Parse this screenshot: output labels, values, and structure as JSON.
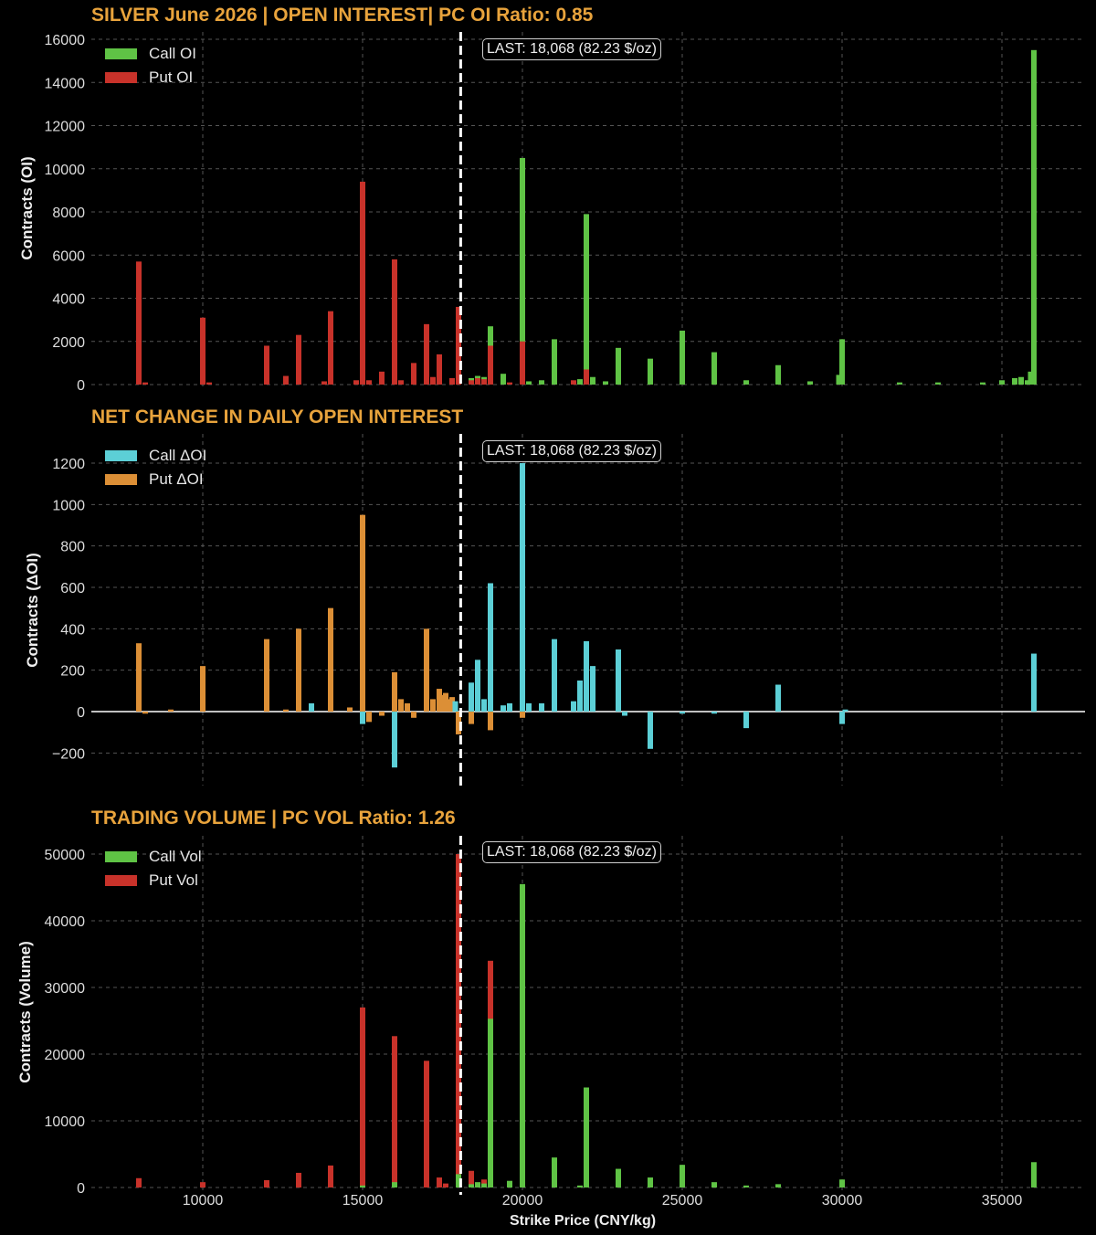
{
  "colors": {
    "background": "#000000",
    "title": "#e8a33c",
    "call_oi": "#5fc345",
    "put_oi": "#c8322a",
    "call_doi": "#5ccfd6",
    "put_doi": "#dc8f36",
    "call_vol": "#5fc345",
    "put_vol": "#c8322a",
    "last_line": "#ffffff",
    "grid": "#555555"
  },
  "last_label": "LAST: 18,068 (82.23 $/oz)",
  "last_strike": 18068,
  "xaxis": {
    "label": "Strike Price (CNY/kg)",
    "ticks": [
      10000,
      15000,
      20000,
      25000,
      30000,
      35000
    ],
    "tick_labels": [
      "10000",
      "15000",
      "20000",
      "25000",
      "30000",
      "35000"
    ],
    "range": [
      7000,
      37000
    ]
  },
  "panels": [
    {
      "id": "oi",
      "title": "SILVER June 2026 | OPEN INTEREST|  PC OI Ratio: 0.85",
      "ylabel": "Contracts (OI)",
      "yticks": [
        0,
        2000,
        4000,
        6000,
        8000,
        10000,
        12000,
        14000,
        16000
      ],
      "ytick_labels": [
        "0",
        "2000",
        "4000",
        "6000",
        "8000",
        "10000",
        "12000",
        "14000",
        "16000"
      ],
      "legend": [
        {
          "label": "Call OI",
          "color": "#5fc345"
        },
        {
          "label": "Put OI",
          "color": "#c8322a"
        }
      ]
    },
    {
      "id": "doi",
      "title": "NET CHANGE IN DAILY OPEN INTEREST",
      "ylabel": "Contracts (ΔOI)",
      "yticks": [
        -200,
        0,
        200,
        400,
        600,
        800,
        1000,
        1200
      ],
      "ytick_labels": [
        "−200",
        "0",
        "200",
        "400",
        "600",
        "800",
        "1000",
        "1200"
      ],
      "legend": [
        {
          "label": "Call ΔOI",
          "color": "#5ccfd6"
        },
        {
          "label": "Put ΔOI",
          "color": "#dc8f36"
        }
      ]
    },
    {
      "id": "vol",
      "title": "TRADING VOLUME | PC VOL Ratio: 1.26",
      "ylabel": "Contracts (Volume)",
      "yticks": [
        0,
        10000,
        20000,
        30000,
        40000,
        50000
      ],
      "ytick_labels": [
        "0",
        "10000",
        "20000",
        "30000",
        "40000",
        "50000"
      ],
      "legend": [
        {
          "label": "Call Vol",
          "color": "#5fc345"
        },
        {
          "label": "Put Vol",
          "color": "#c8322a"
        }
      ]
    }
  ],
  "chart_data": [
    {
      "type": "bar",
      "title": "SILVER June 2026 | OPEN INTEREST|  PC OI Ratio: 0.85",
      "xlabel": "Strike Price (CNY/kg)",
      "ylabel": "Contracts (OI)",
      "ylim": [
        0,
        16000
      ],
      "grid": true,
      "legend_position": "upper left",
      "annotations": [
        "LAST: 18,068 (82.23 $/oz)"
      ],
      "series": [
        {
          "name": "Call OI",
          "points": [
            [
              18400,
              300
            ],
            [
              18600,
              400
            ],
            [
              18800,
              350
            ],
            [
              19000,
              2700
            ],
            [
              19400,
              500
            ],
            [
              20000,
              10500
            ],
            [
              20200,
              150
            ],
            [
              20600,
              200
            ],
            [
              21000,
              2100
            ],
            [
              21800,
              250
            ],
            [
              22000,
              7900
            ],
            [
              22200,
              350
            ],
            [
              22600,
              150
            ],
            [
              23000,
              1700
            ],
            [
              24000,
              1200
            ],
            [
              25000,
              2500
            ],
            [
              26000,
              1500
            ],
            [
              27000,
              200
            ],
            [
              28000,
              900
            ],
            [
              29000,
              150
            ],
            [
              30000,
              2100
            ],
            [
              29900,
              450
            ],
            [
              31800,
              100
            ],
            [
              33000,
              100
            ],
            [
              34400,
              100
            ],
            [
              35000,
              200
            ],
            [
              35400,
              300
            ],
            [
              35600,
              350
            ],
            [
              35800,
              200
            ],
            [
              35900,
              600
            ],
            [
              36000,
              15500
            ]
          ]
        },
        {
          "name": "Put OI",
          "points": [
            [
              8000,
              5700
            ],
            [
              8200,
              100
            ],
            [
              10000,
              3100
            ],
            [
              10200,
              100
            ],
            [
              12000,
              1800
            ],
            [
              12600,
              400
            ],
            [
              13000,
              2300
            ],
            [
              13800,
              150
            ],
            [
              14000,
              3400
            ],
            [
              14800,
              200
            ],
            [
              15000,
              9400
            ],
            [
              15200,
              200
            ],
            [
              15600,
              600
            ],
            [
              16000,
              5800
            ],
            [
              16200,
              200
            ],
            [
              16600,
              1000
            ],
            [
              17000,
              2800
            ],
            [
              17200,
              350
            ],
            [
              17400,
              1400
            ],
            [
              17800,
              300
            ],
            [
              18000,
              3600
            ],
            [
              18400,
              200
            ],
            [
              18600,
              300
            ],
            [
              18800,
              250
            ],
            [
              19000,
              1800
            ],
            [
              19600,
              100
            ],
            [
              20000,
              2000
            ],
            [
              21600,
              200
            ],
            [
              22000,
              700
            ]
          ]
        }
      ]
    },
    {
      "type": "bar",
      "title": "NET CHANGE IN DAILY OPEN INTEREST",
      "xlabel": "Strike Price (CNY/kg)",
      "ylabel": "Contracts (ΔOI)",
      "ylim": [
        -300,
        1300
      ],
      "grid": true,
      "legend_position": "upper left",
      "annotations": [
        "LAST: 18,068 (82.23 $/oz)"
      ],
      "series": [
        {
          "name": "Call ΔOI",
          "points": [
            [
              13400,
              40
            ],
            [
              15000,
              -60
            ],
            [
              16000,
              -270
            ],
            [
              17900,
              50
            ],
            [
              18400,
              140
            ],
            [
              18600,
              250
            ],
            [
              18800,
              60
            ],
            [
              19000,
              620
            ],
            [
              19400,
              30
            ],
            [
              19600,
              40
            ],
            [
              20000,
              1200
            ],
            [
              20200,
              40
            ],
            [
              20600,
              40
            ],
            [
              21000,
              350
            ],
            [
              21600,
              50
            ],
            [
              21800,
              150
            ],
            [
              22000,
              340
            ],
            [
              22200,
              220
            ],
            [
              23000,
              300
            ],
            [
              23200,
              -20
            ],
            [
              24000,
              -180
            ],
            [
              25000,
              -10
            ],
            [
              26000,
              -10
            ],
            [
              27000,
              -80
            ],
            [
              28000,
              130
            ],
            [
              30000,
              -60
            ],
            [
              30100,
              10
            ],
            [
              36000,
              280
            ]
          ]
        },
        {
          "name": "Put ΔOI",
          "points": [
            [
              8000,
              330
            ],
            [
              8200,
              -10
            ],
            [
              9000,
              10
            ],
            [
              10000,
              220
            ],
            [
              12000,
              350
            ],
            [
              12600,
              10
            ],
            [
              13000,
              400
            ],
            [
              14000,
              500
            ],
            [
              14600,
              20
            ],
            [
              15000,
              950
            ],
            [
              15200,
              -50
            ],
            [
              15600,
              -20
            ],
            [
              16000,
              190
            ],
            [
              16200,
              60
            ],
            [
              16400,
              40
            ],
            [
              16600,
              -30
            ],
            [
              17000,
              400
            ],
            [
              17200,
              60
            ],
            [
              17400,
              110
            ],
            [
              17500,
              80
            ],
            [
              17600,
              90
            ],
            [
              17700,
              60
            ],
            [
              17800,
              70
            ],
            [
              18000,
              -110
            ],
            [
              18400,
              -60
            ],
            [
              18600,
              40
            ],
            [
              19000,
              -90
            ],
            [
              20000,
              -30
            ]
          ]
        }
      ]
    },
    {
      "type": "bar",
      "title": "TRADING VOLUME | PC VOL Ratio: 1.26",
      "xlabel": "Strike Price (CNY/kg)",
      "ylabel": "Contracts (Volume)",
      "ylim": [
        0,
        52000
      ],
      "grid": true,
      "legend_position": "upper left",
      "annotations": [
        "LAST: 18,068 (82.23 $/oz)"
      ],
      "series": [
        {
          "name": "Call Vol",
          "points": [
            [
              15000,
              300
            ],
            [
              16000,
              800
            ],
            [
              18000,
              2000
            ],
            [
              18400,
              500
            ],
            [
              18600,
              800
            ],
            [
              18800,
              600
            ],
            [
              19000,
              25300
            ],
            [
              19600,
              1000
            ],
            [
              20000,
              45500
            ],
            [
              21000,
              4500
            ],
            [
              21800,
              300
            ],
            [
              22000,
              15000
            ],
            [
              23000,
              2800
            ],
            [
              24000,
              1500
            ],
            [
              25000,
              3400
            ],
            [
              26000,
              800
            ],
            [
              27000,
              300
            ],
            [
              28000,
              500
            ],
            [
              30000,
              1200
            ],
            [
              36000,
              3800
            ]
          ]
        },
        {
          "name": "Put Vol",
          "points": [
            [
              8000,
              1400
            ],
            [
              10000,
              800
            ],
            [
              12000,
              1100
            ],
            [
              13000,
              2200
            ],
            [
              14000,
              3300
            ],
            [
              15000,
              27000
            ],
            [
              16000,
              22700
            ],
            [
              17000,
              19000
            ],
            [
              17400,
              1500
            ],
            [
              17600,
              600
            ],
            [
              18000,
              50000
            ],
            [
              18400,
              2500
            ],
            [
              18800,
              1200
            ],
            [
              19000,
              34000
            ]
          ]
        }
      ]
    }
  ]
}
